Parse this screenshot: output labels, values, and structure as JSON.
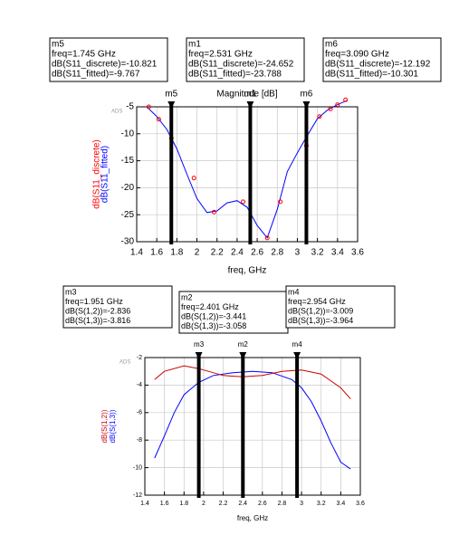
{
  "chart_data": [
    {
      "type": "line",
      "title": "Magnitude [dB]",
      "x_label": "freq, GHz",
      "watermark": "ADS",
      "xlim": [
        1.4,
        3.6
      ],
      "xticks": [
        1.4,
        1.6,
        1.8,
        2.0,
        2.2,
        2.4,
        2.6,
        2.8,
        3.0,
        3.2,
        3.4,
        3.6
      ],
      "ylim": [
        -30,
        -5
      ],
      "yticks": [
        -30,
        -25,
        -20,
        -15,
        -10,
        -5
      ],
      "grid": true,
      "series": [
        {
          "name": "dB(S11_fitted)",
          "color": "#0000ff",
          "style": "line",
          "x": [
            1.5,
            1.6,
            1.7,
            1.8,
            1.9,
            2.0,
            2.1,
            2.2,
            2.3,
            2.4,
            2.5,
            2.6,
            2.7,
            2.8,
            2.9,
            3.0,
            3.1,
            3.2,
            3.3,
            3.4,
            3.5
          ],
          "values": [
            -5.0,
            -6.8,
            -9.2,
            -12.8,
            -17.5,
            -22.0,
            -24.6,
            -24.3,
            -22.8,
            -22.4,
            -23.6,
            -27.0,
            -29.3,
            -24.0,
            -17.0,
            -13.5,
            -10.3,
            -7.2,
            -5.6,
            -4.6,
            -3.8
          ]
        },
        {
          "name": "dB(S11_discrete)",
          "color": "#ff0000",
          "style": "markers",
          "x": [
            1.52,
            1.62,
            1.745,
            1.97,
            2.17,
            2.46,
            2.7,
            2.83,
            3.09,
            3.22,
            3.33,
            3.4,
            3.48
          ],
          "values": [
            -5.0,
            -7.3,
            -10.821,
            -18.2,
            -24.5,
            -22.6,
            -29.3,
            -22.6,
            -12.192,
            -6.8,
            -5.4,
            -4.6,
            -3.7
          ]
        }
      ],
      "markers": [
        {
          "name": "m5",
          "x": 1.745,
          "lines": [
            "m5",
            "freq=1.745 GHz",
            "dB(S11_discrete)=-10.821",
            "dB(S11_fitted)=-9.767"
          ]
        },
        {
          "name": "m1",
          "x": 2.531,
          "lines": [
            "m1",
            "freq=2.531 GHz",
            "dB(S11_discrete)=-24.652",
            "dB(S11_fitted)=-23.788"
          ]
        },
        {
          "name": "m6",
          "x": 3.09,
          "lines": [
            "m6",
            "freq=3.090 GHz",
            "dB(S11_discrete)=-12.192",
            "dB(S11_fitted)=-10.301"
          ]
        }
      ]
    },
    {
      "type": "line",
      "x_label": "freq, GHz",
      "watermark": "ADS",
      "xlim": [
        1.4,
        3.6
      ],
      "xticks": [
        1.4,
        1.6,
        1.8,
        2.0,
        2.2,
        2.4,
        2.6,
        2.8,
        3.0,
        3.2,
        3.4,
        3.6
      ],
      "ylim": [
        -12,
        -2
      ],
      "yticks": [
        -12,
        -10,
        -8,
        -6,
        -4,
        -2
      ],
      "grid": true,
      "series": [
        {
          "name": "dB(S(1,3))",
          "color": "#0000ff",
          "style": "line",
          "x": [
            1.5,
            1.6,
            1.7,
            1.8,
            1.95,
            2.1,
            2.3,
            2.5,
            2.7,
            2.9,
            3.0,
            3.1,
            3.2,
            3.3,
            3.4,
            3.5
          ],
          "values": [
            -9.3,
            -7.7,
            -6.0,
            -4.7,
            -3.8,
            -3.3,
            -3.1,
            -3.0,
            -3.1,
            -3.6,
            -4.2,
            -5.2,
            -6.6,
            -8.2,
            -9.6,
            -10.1
          ]
        },
        {
          "name": "dB(S(1,2))",
          "color": "#cc0000",
          "style": "line",
          "x": [
            1.5,
            1.6,
            1.8,
            1.95,
            2.2,
            2.4,
            2.6,
            2.8,
            3.0,
            3.2,
            3.4,
            3.5
          ],
          "values": [
            -3.6,
            -3.0,
            -2.6,
            -2.8,
            -3.3,
            -3.4,
            -3.3,
            -3.0,
            -2.9,
            -3.2,
            -4.2,
            -5.0
          ]
        }
      ],
      "markers": [
        {
          "name": "m3",
          "x": 1.951,
          "lines": [
            "m3",
            "freq=1.951 GHz",
            "dB(S(1,2))=-2.836",
            "dB(S(1,3))=-3.816"
          ]
        },
        {
          "name": "m2",
          "x": 2.401,
          "lines": [
            "m2",
            "freq=2.401 GHz",
            "dB(S(1,2))=-3.441",
            "dB(S(1,3))=-3.058"
          ]
        },
        {
          "name": "m4",
          "x": 2.954,
          "lines": [
            "m4",
            "freq=2.954 GHz",
            "dB(S(1,2))=-3.009",
            "dB(S(1,3))=-3.964"
          ]
        }
      ]
    }
  ]
}
